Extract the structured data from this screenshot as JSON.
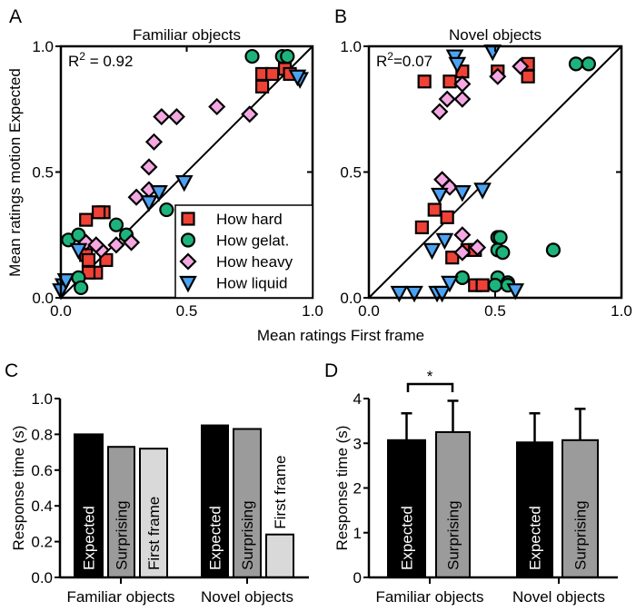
{
  "colors": {
    "hard": "#ef4136",
    "gelat": "#1db47c",
    "heavy": "#f4a8e2",
    "liquid": "#4ba2f2",
    "expected": "#000000",
    "surprising": "#9b9b9b",
    "first_frame": "#d9d9d9"
  },
  "shared_xlabel": "Mean ratings First frame",
  "shared_ylabel": "Mean ratings motion Expected",
  "chart_data": [
    {
      "panel": "A",
      "type": "scatter",
      "title": "Familiar objects",
      "annotation": {
        "prefix": "R",
        "sup": "2",
        "text": " = 0.92"
      },
      "xlim": [
        0,
        1
      ],
      "ylim": [
        0,
        1
      ],
      "xticks": [
        "0.0",
        "0.5",
        "1.0"
      ],
      "yticks": [
        "0.0",
        "0.5",
        "1.0"
      ],
      "diagonal": true,
      "legend_placement": "bottom-right",
      "legend": [
        "How hard",
        "How gelat.",
        "How heavy",
        "How liquid"
      ],
      "series": [
        {
          "name": "How hard",
          "marker": "square",
          "points": [
            [
              0.8,
              0.89
            ],
            [
              0.84,
              0.89
            ],
            [
              0.89,
              0.91
            ],
            [
              0.91,
              0.89
            ],
            [
              0.8,
              0.84
            ],
            [
              0.17,
              0.34
            ],
            [
              0.15,
              0.34
            ],
            [
              0.1,
              0.31
            ],
            [
              0.1,
              0.17
            ],
            [
              0.18,
              0.15
            ],
            [
              0.14,
              0.1
            ],
            [
              0.11,
              0.1
            ],
            [
              0.11,
              0.15
            ]
          ]
        },
        {
          "name": "How gelat.",
          "marker": "circle",
          "points": [
            [
              0.76,
              0.96
            ],
            [
              0.88,
              0.96
            ],
            [
              0.9,
              0.96
            ],
            [
              0.42,
              0.35
            ],
            [
              0.22,
              0.29
            ],
            [
              0.26,
              0.25
            ],
            [
              0.03,
              0.23
            ],
            [
              0.07,
              0.25
            ],
            [
              0.07,
              0.08
            ],
            [
              0.08,
              0.04
            ]
          ]
        },
        {
          "name": "How heavy",
          "marker": "diamond",
          "points": [
            [
              0.4,
              0.72
            ],
            [
              0.46,
              0.72
            ],
            [
              0.62,
              0.76
            ],
            [
              0.75,
              0.73
            ],
            [
              0.37,
              0.62
            ],
            [
              0.35,
              0.52
            ],
            [
              0.3,
              0.4
            ],
            [
              0.35,
              0.43
            ],
            [
              0.22,
              0.21
            ],
            [
              0.28,
              0.22
            ],
            [
              0.16,
              0.19
            ],
            [
              0.1,
              0.22
            ],
            [
              0.14,
              0.21
            ]
          ]
        },
        {
          "name": "How liquid",
          "marker": "triangle-down",
          "points": [
            [
              0.49,
              0.46
            ],
            [
              0.39,
              0.42
            ],
            [
              0.35,
              0.38
            ],
            [
              0.95,
              0.87
            ],
            [
              0.94,
              0.88
            ],
            [
              0.07,
              0.19
            ],
            [
              0.01,
              0.05
            ],
            [
              0.0,
              0.03
            ],
            [
              0.02,
              0.07
            ]
          ]
        }
      ]
    },
    {
      "panel": "B",
      "type": "scatter",
      "title": "Novel objects",
      "annotation": {
        "prefix": "R",
        "sup": "2",
        "text": "=0.07"
      },
      "xlim": [
        0,
        1
      ],
      "ylim": [
        0,
        1
      ],
      "xticks": [
        "0.0",
        "0.5",
        "1.0"
      ],
      "yticks": [
        "0.0",
        "0.5",
        "1.0"
      ],
      "diagonal": true,
      "series": [
        {
          "name": "How hard",
          "marker": "square",
          "points": [
            [
              0.22,
              0.86
            ],
            [
              0.32,
              0.86
            ],
            [
              0.37,
              0.9
            ],
            [
              0.51,
              0.9
            ],
            [
              0.63,
              0.93
            ],
            [
              0.63,
              0.88
            ],
            [
              0.21,
              0.28
            ],
            [
              0.26,
              0.35
            ],
            [
              0.31,
              0.32
            ],
            [
              0.33,
              0.16
            ],
            [
              0.39,
              0.19
            ],
            [
              0.42,
              0.19
            ],
            [
              0.42,
              0.05
            ],
            [
              0.45,
              0.05
            ]
          ]
        },
        {
          "name": "How gelat.",
          "marker": "circle",
          "points": [
            [
              0.82,
              0.93
            ],
            [
              0.87,
              0.93
            ],
            [
              0.73,
              0.19
            ],
            [
              0.51,
              0.24
            ],
            [
              0.52,
              0.24
            ],
            [
              0.51,
              0.19
            ],
            [
              0.53,
              0.18
            ],
            [
              0.37,
              0.08
            ],
            [
              0.51,
              0.08
            ],
            [
              0.55,
              0.06
            ],
            [
              0.5,
              0.05
            ],
            [
              0.55,
              0.05
            ]
          ]
        },
        {
          "name": "How heavy",
          "marker": "diamond",
          "points": [
            [
              0.28,
              0.74
            ],
            [
              0.31,
              0.79
            ],
            [
              0.37,
              0.79
            ],
            [
              0.37,
              0.85
            ],
            [
              0.51,
              0.88
            ],
            [
              0.6,
              0.92
            ],
            [
              0.29,
              0.47
            ],
            [
              0.32,
              0.44
            ],
            [
              0.37,
              0.25
            ],
            [
              0.43,
              0.2
            ],
            [
              0.37,
              0.18
            ]
          ]
        },
        {
          "name": "How liquid",
          "marker": "triangle-down",
          "points": [
            [
              0.49,
              0.98
            ],
            [
              0.34,
              0.96
            ],
            [
              0.35,
              0.93
            ],
            [
              0.28,
              0.41
            ],
            [
              0.37,
              0.42
            ],
            [
              0.45,
              0.43
            ],
            [
              0.3,
              0.23
            ],
            [
              0.25,
              0.19
            ],
            [
              0.12,
              0.02
            ],
            [
              0.18,
              0.02
            ],
            [
              0.27,
              0.02
            ],
            [
              0.29,
              0.02
            ],
            [
              0.32,
              0.06
            ],
            [
              0.58,
              0.03
            ]
          ]
        }
      ]
    },
    {
      "panel": "C",
      "type": "bar",
      "ylabel": "Response time (s)",
      "ylim": [
        0,
        1
      ],
      "yticks": [
        "0.0",
        "0.2",
        "0.4",
        "0.6",
        "0.8",
        "1.0"
      ],
      "categories": [
        "Familiar objects",
        "Novel objects"
      ],
      "series": [
        {
          "name": "Expected",
          "values": [
            0.8,
            0.85
          ]
        },
        {
          "name": "Surprising",
          "values": [
            0.73,
            0.83
          ]
        },
        {
          "name": "First frame",
          "values": [
            0.72,
            0.24
          ]
        }
      ]
    },
    {
      "panel": "D",
      "type": "bar",
      "ylabel": "Response time (s)",
      "ylim": [
        0,
        4
      ],
      "yticks": [
        "0",
        "1",
        "2",
        "3",
        "4"
      ],
      "categories": [
        "Familiar objects",
        "Novel objects"
      ],
      "series": [
        {
          "name": "Expected",
          "values": [
            3.07,
            3.02
          ],
          "error": [
            0.6,
            0.65
          ]
        },
        {
          "name": "Surprising",
          "values": [
            3.25,
            3.07
          ],
          "error": [
            0.7,
            0.7
          ]
        }
      ],
      "significance": {
        "label": "*",
        "between": [
          "Expected",
          "Surprising"
        ],
        "category": "Familiar objects"
      }
    }
  ]
}
